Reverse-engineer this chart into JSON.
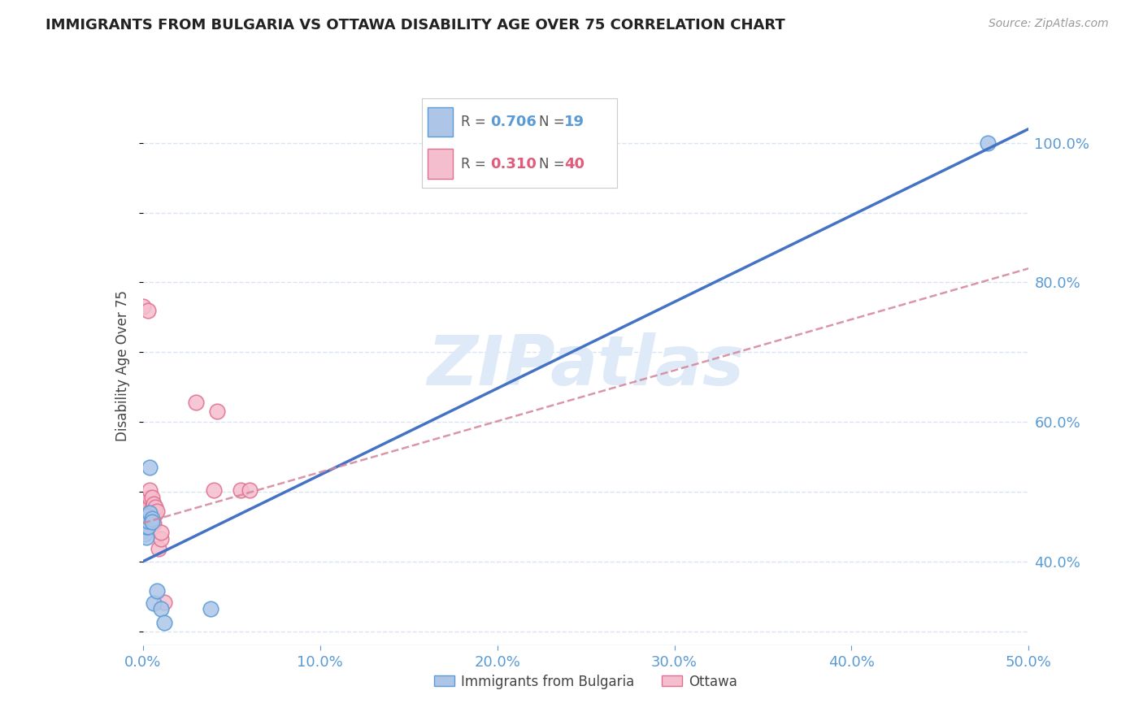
{
  "title": "IMMIGRANTS FROM BULGARIA VS OTTAWA DISABILITY AGE OVER 75 CORRELATION CHART",
  "source": "Source: ZipAtlas.com",
  "ylabel": "Disability Age Over 75",
  "legend_label_blue": "Immigrants from Bulgaria",
  "legend_label_pink": "Ottawa",
  "R_blue": 0.706,
  "N_blue": 19,
  "R_pink": 0.31,
  "N_pink": 40,
  "xlim": [
    0.0,
    0.5
  ],
  "ylim": [
    0.28,
    1.08
  ],
  "y_ticks": [
    0.4,
    0.6,
    0.8,
    1.0
  ],
  "x_ticks": [
    0.0,
    0.1,
    0.2,
    0.3,
    0.4,
    0.5
  ],
  "blue_scatter_x": [
    0.0005,
    0.001,
    0.001,
    0.002,
    0.002,
    0.002,
    0.003,
    0.003,
    0.003,
    0.004,
    0.004,
    0.005,
    0.005,
    0.006,
    0.008,
    0.01,
    0.012,
    0.038,
    0.477
  ],
  "blue_scatter_y": [
    0.445,
    0.44,
    0.455,
    0.435,
    0.45,
    0.465,
    0.45,
    0.458,
    0.465,
    0.47,
    0.535,
    0.462,
    0.457,
    0.34,
    0.358,
    0.332,
    0.312,
    0.332,
    1.0
  ],
  "pink_scatter_x": [
    0.0,
    0.0,
    0.001,
    0.001,
    0.001,
    0.001,
    0.001,
    0.002,
    0.002,
    0.002,
    0.002,
    0.002,
    0.003,
    0.003,
    0.003,
    0.003,
    0.004,
    0.004,
    0.004,
    0.004,
    0.004,
    0.005,
    0.005,
    0.005,
    0.005,
    0.006,
    0.006,
    0.006,
    0.007,
    0.007,
    0.008,
    0.009,
    0.01,
    0.01,
    0.012,
    0.03,
    0.04,
    0.042,
    0.055,
    0.06
  ],
  "pink_scatter_y": [
    0.765,
    0.455,
    0.455,
    0.46,
    0.46,
    0.47,
    0.48,
    0.455,
    0.46,
    0.465,
    0.472,
    0.482,
    0.455,
    0.462,
    0.478,
    0.76,
    0.46,
    0.47,
    0.48,
    0.492,
    0.502,
    0.455,
    0.465,
    0.477,
    0.492,
    0.455,
    0.467,
    0.482,
    0.468,
    0.478,
    0.472,
    0.418,
    0.432,
    0.442,
    0.342,
    0.628,
    0.502,
    0.615,
    0.502,
    0.502
  ],
  "blue_line_x": [
    0.0,
    0.5
  ],
  "blue_line_y": [
    0.4,
    1.02
  ],
  "pink_line_x": [
    0.0,
    0.5
  ],
  "pink_line_y": [
    0.455,
    0.82
  ],
  "background_color": "#ffffff",
  "scatter_blue_color": "#adc6e8",
  "scatter_blue_edge": "#5b9bd5",
  "scatter_pink_color": "#f5bece",
  "scatter_pink_edge": "#e07090",
  "line_blue_color": "#4472c4",
  "line_pink_color": "#d4849a",
  "grid_color": "#d8e4f0",
  "title_color": "#222222",
  "axis_label_color": "#444444",
  "tick_color_right": "#5b9bd5",
  "tick_color_x": "#5b9bd5",
  "watermark_color": "#deeaf8",
  "legend_R_color_blue": "#5b9bd5",
  "legend_R_color_pink": "#e05c7a",
  "legend_N_color_blue": "#5b9bd5",
  "legend_N_color_pink": "#e05c7a"
}
